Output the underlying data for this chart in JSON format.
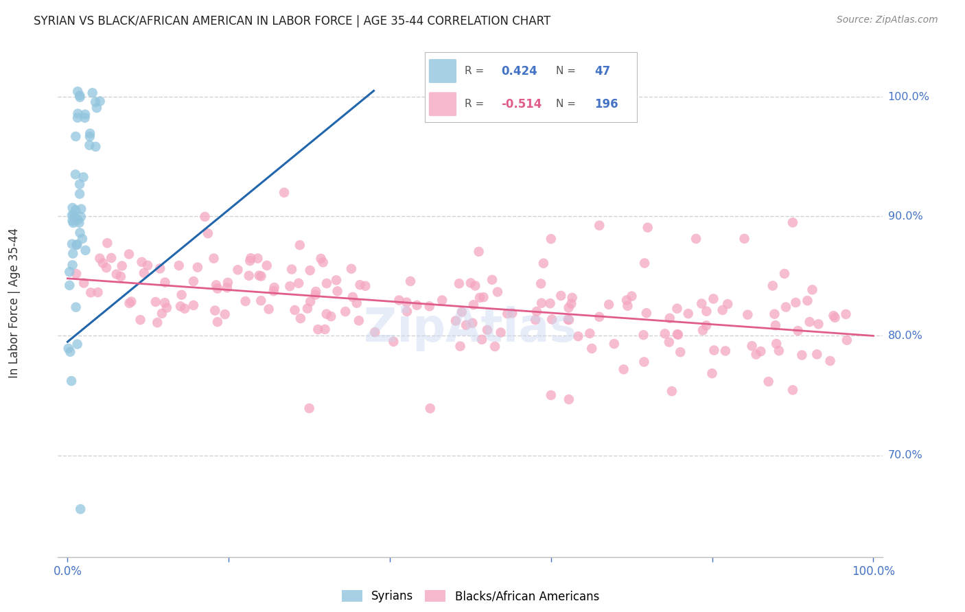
{
  "title": "SYRIAN VS BLACK/AFRICAN AMERICAN IN LABOR FORCE | AGE 35-44 CORRELATION CHART",
  "source": "Source: ZipAtlas.com",
  "ylabel": "In Labor Force | Age 35-44",
  "legend_blue_R": "0.424",
  "legend_blue_N": "47",
  "legend_pink_R": "-0.514",
  "legend_pink_N": "196",
  "blue_scatter_color": "#92c5de",
  "pink_scatter_color": "#f4a6c0",
  "blue_line_color": "#2166ac",
  "pink_line_color": "#e05c8c",
  "title_color": "#222222",
  "axis_label_color": "#333333",
  "tick_color": "#4472C4",
  "grid_color": "#cccccc",
  "background_color": "#ffffff",
  "blue_line_x": [
    0.0,
    0.38
  ],
  "blue_line_y": [
    0.795,
    1.005
  ],
  "pink_line_x": [
    0.0,
    1.0
  ],
  "pink_line_y": [
    0.848,
    0.8
  ],
  "right_yticks": [
    0.7,
    0.8,
    0.9,
    1.0
  ],
  "right_yticklabels": [
    "70.0%",
    "80.0%",
    "90.0%",
    "100.0%"
  ],
  "ylim": [
    0.615,
    1.04
  ],
  "xlim": [
    -0.012,
    1.012
  ]
}
